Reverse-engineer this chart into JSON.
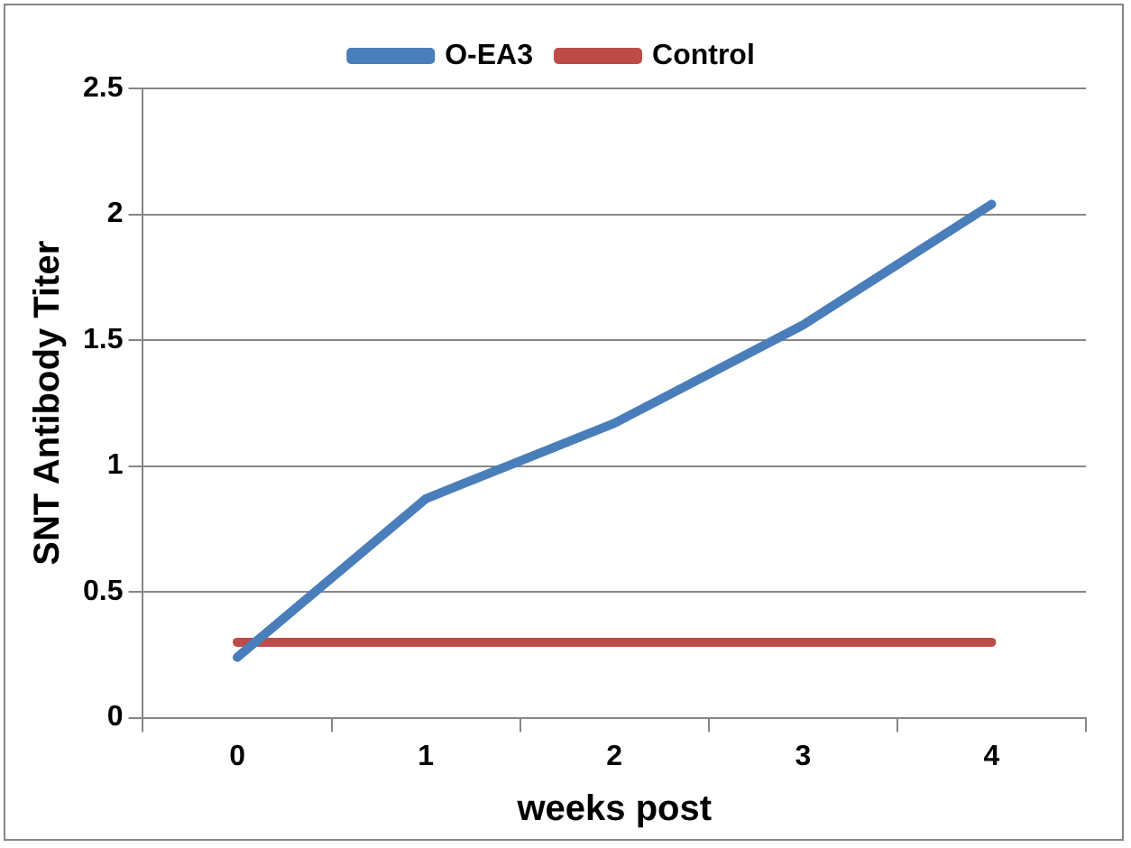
{
  "chart_data": {
    "type": "line",
    "xlabel": "weeks post",
    "ylabel": "SNT Antibody Titer",
    "categories": [
      "0",
      "1",
      "2",
      "3",
      "4"
    ],
    "series": [
      {
        "name": "O-EA3",
        "color": "#4a7ebb",
        "values": [
          0.24,
          0.87,
          1.17,
          1.56,
          2.04
        ]
      },
      {
        "name": "Control",
        "color": "#be4b48",
        "values": [
          0.3,
          0.3,
          0.3,
          0.3,
          0.3
        ]
      }
    ],
    "ylim": [
      0,
      2.5
    ],
    "yticks": [
      0,
      0.5,
      1,
      1.5,
      2,
      2.5
    ],
    "grid": "y",
    "legend": "top",
    "marker": "none",
    "line_style": "solid"
  }
}
